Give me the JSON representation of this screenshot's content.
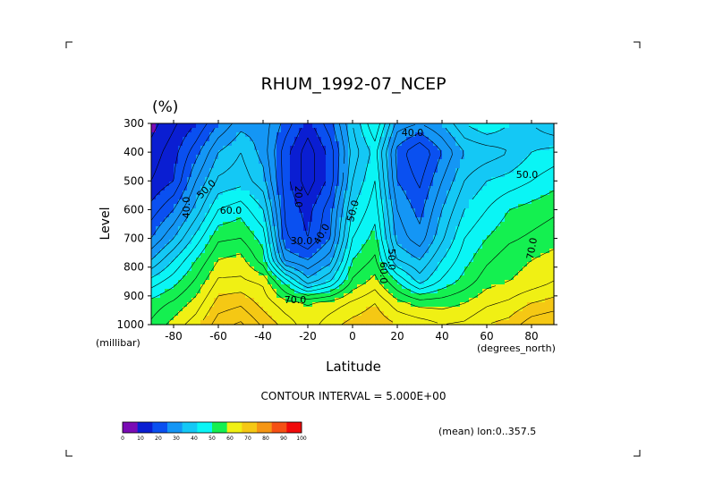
{
  "chart_data": {
    "type": "heatmap",
    "title": "RHUM_1992-07_NCEP",
    "units_label": "(%)",
    "xlabel": "Latitude",
    "ylabel": "Level",
    "x_units": "(degrees_north)",
    "y_units": "(millibar)",
    "x_range": [
      -90,
      90
    ],
    "y_range": [
      1000,
      300
    ],
    "x_ticks": [
      -80,
      -60,
      -40,
      -20,
      0,
      20,
      40,
      60,
      80
    ],
    "y_ticks": [
      300,
      400,
      500,
      600,
      700,
      800,
      900,
      1000
    ],
    "levels": [
      1000,
      925,
      850,
      775,
      700,
      600,
      500,
      400,
      300
    ],
    "latitudes": [
      -90,
      -80,
      -70,
      -60,
      -50,
      -40,
      -30,
      -20,
      -10,
      0,
      10,
      20,
      30,
      40,
      50,
      60,
      70,
      80,
      90
    ],
    "values": [
      [
        66,
        72,
        78,
        88,
        91,
        84,
        78,
        72,
        78,
        82,
        84,
        80,
        78,
        75,
        76,
        80,
        82,
        88,
        90
      ],
      [
        62,
        66,
        72,
        82,
        84,
        78,
        72,
        70,
        72,
        76,
        80,
        72,
        68,
        68,
        70,
        74,
        76,
        80,
        82
      ],
      [
        52,
        58,
        66,
        76,
        76,
        74,
        58,
        42,
        50,
        66,
        72,
        60,
        48,
        56,
        62,
        68,
        70,
        72,
        75
      ],
      [
        40,
        50,
        60,
        70,
        72,
        62,
        34,
        30,
        38,
        60,
        66,
        45,
        40,
        50,
        58,
        64,
        68,
        70,
        72
      ],
      [
        30,
        40,
        52,
        64,
        65,
        58,
        26,
        20,
        30,
        55,
        62,
        38,
        32,
        44,
        55,
        60,
        64,
        66,
        68
      ],
      [
        22,
        30,
        42,
        55,
        58,
        50,
        24,
        18,
        28,
        50,
        58,
        35,
        28,
        40,
        50,
        55,
        60,
        62,
        64
      ],
      [
        15,
        20,
        35,
        46,
        48,
        42,
        22,
        12,
        22,
        45,
        55,
        30,
        24,
        35,
        45,
        50,
        52,
        55,
        58
      ],
      [
        12,
        18,
        28,
        40,
        45,
        38,
        22,
        12,
        22,
        42,
        52,
        28,
        20,
        30,
        40,
        42,
        45,
        50,
        52
      ],
      [
        8,
        14,
        20,
        30,
        38,
        38,
        28,
        18,
        28,
        45,
        60,
        38,
        35,
        40,
        50,
        55,
        50,
        45,
        40
      ]
    ],
    "contour_labels": [
      "40.0",
      "50.0",
      "60.0",
      "20.0",
      "30.0",
      "40.0",
      "50.0",
      "40.0",
      "50.0",
      "60.0",
      "70.0",
      "50.0",
      "70.0"
    ],
    "colorbar": {
      "ticks": [
        "0",
        "10",
        "20",
        "30",
        "40",
        "50",
        "60",
        "70",
        "80",
        "90",
        "100"
      ],
      "colors": [
        "#7a0bb5",
        "#0a1ed2",
        "#0a50f0",
        "#1496f5",
        "#14c8f5",
        "#0af5f5",
        "#14f050",
        "#f0f014",
        "#f5c814",
        "#f59614",
        "#f55014",
        "#f00a0a"
      ]
    },
    "contour_interval": "CONTOUR INTERVAL = 5.000E+00",
    "footnote": "(mean) lon:0..357.5",
    "grid": false
  }
}
